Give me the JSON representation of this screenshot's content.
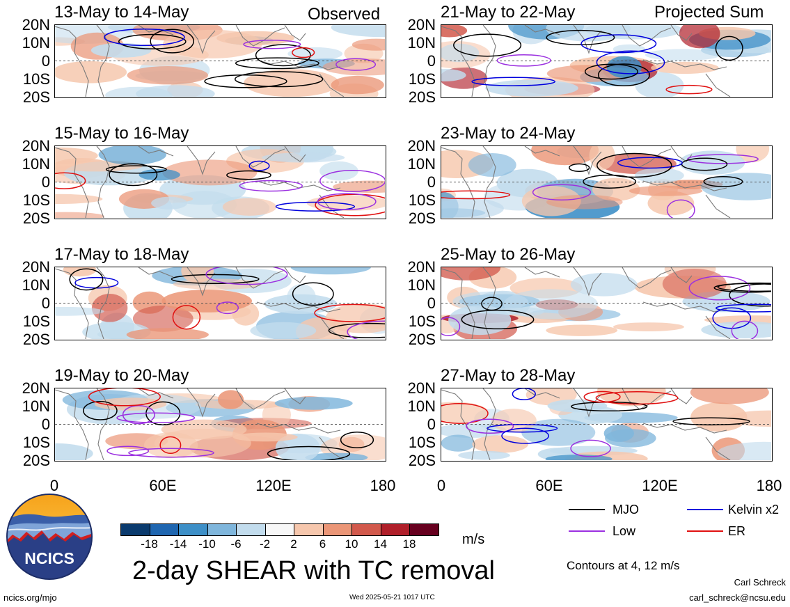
{
  "header": {
    "left_tag": "Observed",
    "right_tag": "Projected Sum"
  },
  "panels": [
    {
      "id": "p1",
      "title": "13-May to 14-May"
    },
    {
      "id": "p2",
      "title": "15-May to 16-May"
    },
    {
      "id": "p3",
      "title": "17-May to 18-May"
    },
    {
      "id": "p4",
      "title": "19-May to 20-May"
    },
    {
      "id": "p5",
      "title": "21-May to 22-May"
    },
    {
      "id": "p6",
      "title": "23-May to 24-May"
    },
    {
      "id": "p7",
      "title": "25-May to 26-May"
    },
    {
      "id": "p8",
      "title": "27-May to 28-May"
    }
  ],
  "chart_data": {
    "type": "heatmap",
    "title": "2-day SHEAR with TC removal",
    "lat_labels": [
      "20N",
      "10N",
      "0",
      "10S",
      "20S"
    ],
    "lon_labels": [
      "0",
      "60E",
      "120E",
      "180"
    ],
    "lon_range": [
      0,
      180
    ],
    "lat_range": [
      -20,
      20
    ],
    "colorbar": {
      "unit": "m/s",
      "ticks": [
        "-18",
        "-14",
        "-10",
        "-6",
        "-2",
        "2",
        "6",
        "10",
        "14",
        "18"
      ],
      "colors": [
        "#0b3b6e",
        "#1f66b0",
        "#3d8fc7",
        "#7fb6dc",
        "#c2dced",
        "#f7f7f7",
        "#f6c7ad",
        "#eb9677",
        "#d2594c",
        "#b01f2a",
        "#67001f"
      ]
    },
    "legend": [
      {
        "label": "MJO",
        "color": "#000000"
      },
      {
        "label": "Kelvin x2",
        "color": "#0000dd"
      },
      {
        "label": "Low",
        "color": "#9b30e0"
      },
      {
        "label": "ER",
        "color": "#e01010"
      }
    ],
    "contour_note": "Contours at 4, 12 m/s"
  },
  "footer": {
    "logo_text": "NCICS",
    "url": "ncics.org/mjo",
    "timestamp": "Wed 2025-05-21 1017 UTC",
    "author": "Carl Schreck",
    "email": "carl_schreck@ncsu.edu"
  }
}
